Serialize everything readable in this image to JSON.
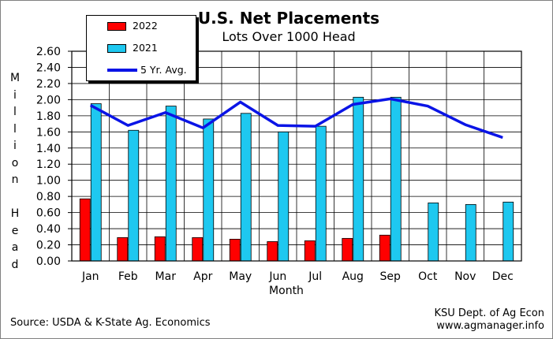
{
  "chart_data": {
    "type": "bar",
    "title": "U.S. Net Placements",
    "subtitle": "Lots Over 1000 Head",
    "xlabel": "Month",
    "ylabel": "Million Head",
    "ylim": [
      0,
      2.6
    ],
    "ytick_step": 0.2,
    "yticks": [
      "0.00",
      "0.20",
      "0.40",
      "0.60",
      "0.80",
      "1.00",
      "1.20",
      "1.40",
      "1.60",
      "1.80",
      "2.00",
      "2.20",
      "2.40",
      "2.60"
    ],
    "grid": true,
    "legend_position": "top-left",
    "categories": [
      "Jan",
      "Feb",
      "Mar",
      "Apr",
      "May",
      "Jun",
      "Jul",
      "Aug",
      "Sep",
      "Oct",
      "Nov",
      "Dec"
    ],
    "series": [
      {
        "name": "2022",
        "kind": "bar",
        "color": "#ff0000",
        "values": [
          0.77,
          0.29,
          0.3,
          0.29,
          0.27,
          0.24,
          0.25,
          0.28,
          0.32,
          null,
          null,
          null
        ]
      },
      {
        "name": "2021",
        "kind": "bar",
        "color": "#1ec8f0",
        "values": [
          1.95,
          1.62,
          1.92,
          1.76,
          1.83,
          1.6,
          1.67,
          2.03,
          2.03,
          0.72,
          0.7,
          0.73
        ]
      },
      {
        "name": "5 Yr. Avg.",
        "kind": "line",
        "color": "#0a14e6",
        "values": [
          1.93,
          1.68,
          1.84,
          1.65,
          1.97,
          1.68,
          1.67,
          1.94,
          2.01,
          1.92,
          1.69,
          1.53
        ]
      }
    ]
  },
  "footer": {
    "source": "Source:  USDA & K-State Ag. Economics",
    "credit_line1": "KSU Dept. of Ag Econ",
    "credit_line2": "www.agmanager.info"
  }
}
